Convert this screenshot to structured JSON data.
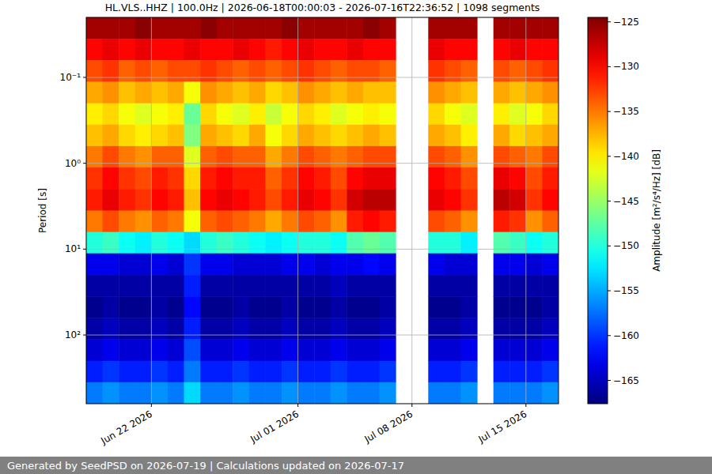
{
  "chart_data": {
    "type": "heatmap",
    "title": "HL.VLS..HHZ | 100.0Hz | 2026-06-18T00:00:03 - 2026-07-16T22:36:52 | 1098 segments",
    "y_label": "Period [s]",
    "footer": "Generated by SeedPSD on 2026-07-19 | Calculations updated on 2026-07-17",
    "log": "y",
    "grid": true,
    "xlim": [
      "2026-06-18",
      "2026-07-17"
    ],
    "xticks": [
      {
        "value": "2026-06-22",
        "label": "Jun 22 2026"
      },
      {
        "value": "2026-07-01",
        "label": "Jul 01 2026"
      },
      {
        "value": "2026-07-08",
        "label": "Jul 08 2026"
      },
      {
        "value": "2026-07-15",
        "label": "Jul 15 2026"
      }
    ],
    "ylim": [
      631,
      0.02
    ],
    "yticks": [
      {
        "value": 0.1,
        "label": "10⁻¹"
      },
      {
        "value": 1,
        "label": "10⁰"
      },
      {
        "value": 10,
        "label": "10¹"
      },
      {
        "value": 100,
        "label": "10²"
      }
    ],
    "x_edges": [
      "2026-06-18",
      "2026-06-19",
      "2026-06-20",
      "2026-06-21",
      "2026-06-22",
      "2026-06-23",
      "2026-06-24",
      "2026-06-25",
      "2026-06-26",
      "2026-06-27",
      "2026-06-28",
      "2026-06-29",
      "2026-06-30",
      "2026-07-01",
      "2026-07-02",
      "2026-07-03",
      "2026-07-04",
      "2026-07-05",
      "2026-07-06",
      "2026-07-07",
      "2026-07-08",
      "2026-07-09",
      "2026-07-10",
      "2026-07-11",
      "2026-07-12",
      "2026-07-13",
      "2026-07-14",
      "2026-07-15",
      "2026-07-16",
      "2026-07-17"
    ],
    "y_edges": [
      0.02,
      0.0355,
      0.0631,
      0.112,
      0.2,
      0.355,
      0.631,
      1.12,
      2.0,
      3.55,
      6.31,
      11.2,
      20.0,
      35.5,
      63.1,
      112,
      200,
      355,
      631
    ],
    "cells": [
      [
        -126,
        -126,
        -126,
        -125,
        -126,
        -126,
        -126,
        -125,
        -126,
        -126,
        -126,
        -126,
        -125,
        -126,
        -126,
        -126,
        -126,
        -125,
        -126,
        null,
        null,
        -126,
        -126,
        -126,
        null,
        -126,
        -126,
        -126,
        -126
      ],
      [
        -130,
        -129,
        -130,
        -129,
        -130,
        -130,
        -129,
        -130,
        -130,
        -129,
        -130,
        -131,
        -130,
        -129,
        -130,
        -130,
        -129,
        -130,
        -130,
        null,
        null,
        -129,
        -130,
        -130,
        null,
        -130,
        -129,
        -130,
        -130
      ],
      [
        -133,
        -132,
        -134,
        -133,
        -134,
        -133,
        -133,
        -132,
        -133,
        -134,
        -133,
        -134,
        -133,
        -132,
        -133,
        -134,
        -133,
        -133,
        -134,
        null,
        null,
        -132,
        -133,
        -134,
        null,
        -133,
        -134,
        -133,
        -132
      ],
      [
        -137,
        -136,
        -138,
        -137,
        -138,
        -137,
        -141,
        -136,
        -137,
        -138,
        -137,
        -139,
        -138,
        -136,
        -137,
        -138,
        -137,
        -138,
        -138,
        null,
        null,
        -136,
        -137,
        -138,
        null,
        -137,
        -138,
        -137,
        -136
      ],
      [
        -140,
        -139,
        -141,
        -142,
        -141,
        -140,
        -147,
        -139,
        -141,
        -142,
        -140,
        -143,
        -141,
        -139,
        -140,
        -142,
        -141,
        -140,
        -141,
        null,
        null,
        -139,
        -141,
        -142,
        null,
        -140,
        -142,
        -141,
        -139
      ],
      [
        -138,
        -137,
        -139,
        -140,
        -139,
        -138,
        -146,
        -137,
        -138,
        -139,
        -137,
        -141,
        -139,
        -137,
        -138,
        -139,
        -138,
        -137,
        -138,
        null,
        null,
        -137,
        -138,
        -140,
        null,
        -137,
        -139,
        -138,
        -137
      ],
      [
        -135,
        -133,
        -135,
        -136,
        -134,
        -134,
        -142,
        -134,
        -133,
        -134,
        -134,
        -137,
        -135,
        -133,
        -134,
        -135,
        -134,
        -133,
        -133,
        null,
        null,
        -133,
        -134,
        -136,
        null,
        -133,
        -134,
        -135,
        -133
      ],
      [
        -132,
        -130,
        -132,
        -133,
        -131,
        -132,
        -139,
        -131,
        -130,
        -131,
        -131,
        -134,
        -132,
        -130,
        -131,
        -133,
        -130,
        -129,
        -129,
        null,
        null,
        -130,
        -131,
        -133,
        null,
        -129,
        -130,
        -133,
        -131
      ],
      [
        -131,
        -129,
        -131,
        -132,
        -130,
        -131,
        -138,
        -130,
        -129,
        -130,
        -131,
        -133,
        -131,
        -129,
        -130,
        -132,
        -128,
        -127,
        -127,
        null,
        null,
        -129,
        -130,
        -132,
        null,
        -127,
        -128,
        -132,
        -130
      ],
      [
        -135,
        -133,
        -135,
        -136,
        -134,
        -135,
        -141,
        -134,
        -133,
        -134,
        -135,
        -137,
        -135,
        -133,
        -134,
        -136,
        -131,
        -130,
        -131,
        null,
        null,
        -133,
        -134,
        -136,
        null,
        -131,
        -132,
        -136,
        -134
      ],
      [
        -150,
        -149,
        -151,
        -152,
        -150,
        -151,
        -153,
        -150,
        -149,
        -150,
        -151,
        -152,
        -151,
        -150,
        -150,
        -151,
        -148,
        -147,
        -148,
        null,
        null,
        -150,
        -150,
        -152,
        null,
        -148,
        -149,
        -151,
        -150
      ],
      [
        -163,
        -163,
        -164,
        -164,
        -163,
        -164,
        -160,
        -163,
        -163,
        -164,
        -164,
        -164,
        -163,
        -163,
        -164,
        -163,
        -163,
        -162,
        -163,
        null,
        null,
        -163,
        -164,
        -164,
        null,
        -163,
        -163,
        -164,
        -163
      ],
      [
        -166,
        -166,
        -166,
        -166,
        -166,
        -166,
        -161,
        -166,
        -166,
        -166,
        -166,
        -166,
        -166,
        -166,
        -166,
        -165,
        -166,
        -166,
        -166,
        null,
        null,
        -166,
        -166,
        -166,
        null,
        -166,
        -166,
        -166,
        -166
      ],
      [
        -167,
        -166,
        -167,
        -167,
        -166,
        -167,
        -162,
        -167,
        -167,
        -166,
        -167,
        -167,
        -166,
        -167,
        -167,
        -166,
        -167,
        -167,
        -166,
        null,
        null,
        -167,
        -167,
        -166,
        null,
        -167,
        -167,
        -167,
        -166
      ],
      [
        -166,
        -165,
        -166,
        -166,
        -165,
        -166,
        -161,
        -166,
        -166,
        -165,
        -166,
        -166,
        -165,
        -166,
        -166,
        -165,
        -166,
        -166,
        -165,
        null,
        null,
        -166,
        -166,
        -165,
        null,
        -166,
        -166,
        -166,
        -165
      ],
      [
        -164,
        -163,
        -164,
        -164,
        -163,
        -164,
        -159,
        -164,
        -164,
        -163,
        -164,
        -164,
        -163,
        -164,
        -164,
        -163,
        -164,
        -164,
        -163,
        null,
        null,
        -164,
        -164,
        -163,
        null,
        -164,
        -164,
        -164,
        -163
      ],
      [
        -161,
        -160,
        -161,
        -161,
        -160,
        -161,
        -157,
        -161,
        -161,
        -160,
        -161,
        -161,
        -160,
        -161,
        -161,
        -160,
        -161,
        -161,
        -160,
        null,
        null,
        -161,
        -161,
        -160,
        null,
        -161,
        -161,
        -161,
        -160
      ],
      [
        -157,
        -156,
        -157,
        -157,
        -156,
        -157,
        -153,
        -157,
        -157,
        -156,
        -157,
        -157,
        -156,
        -157,
        -157,
        -156,
        -157,
        -157,
        -156,
        null,
        null,
        -157,
        -157,
        -156,
        null,
        -157,
        -157,
        -157,
        -156
      ]
    ],
    "colorbar": {
      "label": "Amplitude [m²/s⁴/Hz] [dB]",
      "range": [
        -167.6,
        -124.5
      ],
      "ticks": [
        {
          "value": -165,
          "label": "−165"
        },
        {
          "value": -160,
          "label": "−160"
        },
        {
          "value": -155,
          "label": "−155"
        },
        {
          "value": -150,
          "label": "−150"
        },
        {
          "value": -145,
          "label": "−145"
        },
        {
          "value": -140,
          "label": "−140"
        },
        {
          "value": -135,
          "label": "−135"
        },
        {
          "value": -130,
          "label": "−130"
        },
        {
          "value": -125,
          "label": "−125"
        }
      ]
    }
  }
}
